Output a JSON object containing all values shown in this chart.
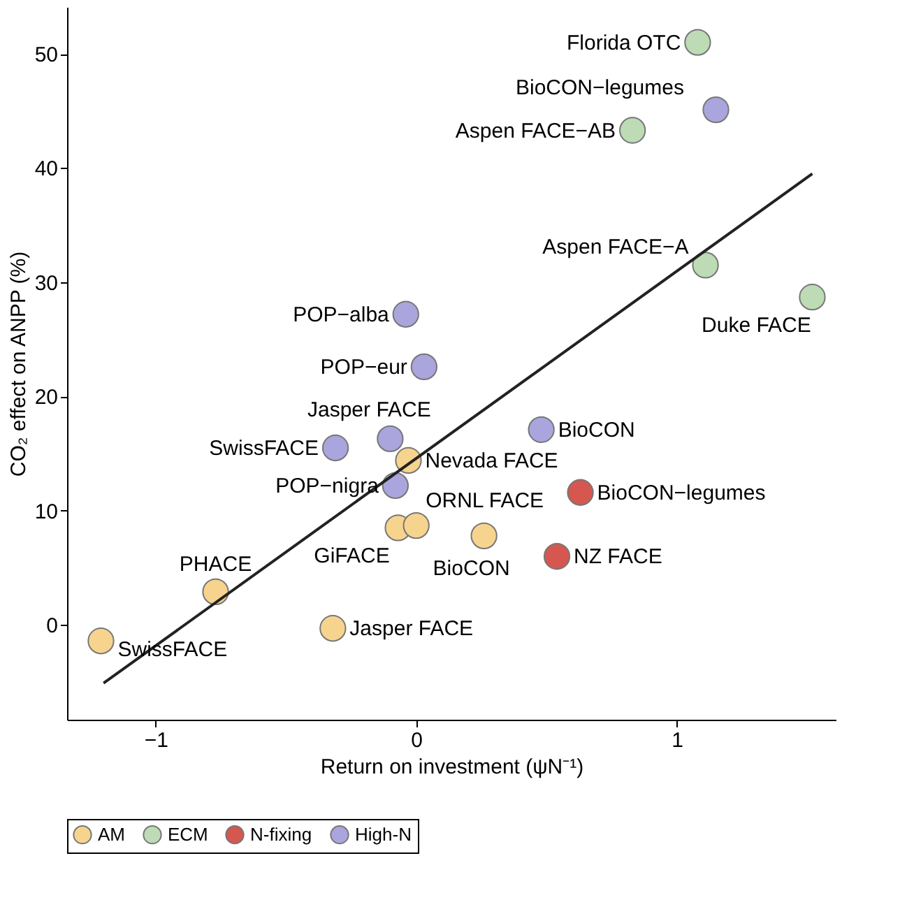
{
  "chart_data": {
    "type": "scatter",
    "xlabel": "Return on investment (ψN⁻¹)",
    "ylabel": "CO₂ effect on ANPP (%)",
    "xlim": [
      -1.34,
      1.61
    ],
    "ylim": [
      -8.3,
      54.1
    ],
    "xticks": [
      -1,
      0,
      1
    ],
    "yticks": [
      0,
      10,
      20,
      30,
      40,
      50
    ],
    "grid": false,
    "legend": "bottom",
    "series": [
      {
        "name": "AM",
        "color": "#f7d48e",
        "marker": "circle",
        "x": [
          -1.21,
          -0.77,
          -0.32,
          -0.07,
          0.0,
          0.26,
          -0.03
        ],
        "values": [
          -1.4,
          2.9,
          -0.3,
          8.5,
          8.7,
          7.8,
          14.4
        ],
        "value_labels": [
          "SwissFACE",
          "PHACE",
          "Jasper FACE",
          "GiFACE",
          "ORNL FACE",
          "BioCON",
          "Nevada FACE"
        ]
      },
      {
        "name": "ECM",
        "color": "#bddbb5",
        "marker": "circle",
        "x": [
          1.08,
          0.83,
          1.11,
          1.52
        ],
        "values": [
          51.0,
          43.3,
          31.5,
          28.7
        ],
        "value_labels": [
          "Florida OTC",
          "Aspen FACE−AB",
          "Aspen FACE−A",
          "Duke FACE"
        ]
      },
      {
        "name": "N-fixing",
        "color": "#d5574f",
        "marker": "circle",
        "x": [
          0.63,
          0.54
        ],
        "values": [
          11.6,
          6.0
        ],
        "value_labels": [
          "BioCON−legumes",
          "NZ FACE"
        ]
      },
      {
        "name": "High-N",
        "color": "#aaa5dc",
        "marker": "circle",
        "x": [
          1.15,
          -0.04,
          0.03,
          -0.1,
          -0.31,
          0.48,
          -0.08
        ],
        "values": [
          45.1,
          27.2,
          22.6,
          16.3,
          15.5,
          17.1,
          12.2
        ],
        "value_labels": [
          "BioCON−legumes",
          "POP−alba",
          "POP−eur",
          "Jasper FACE",
          "SwissFACE",
          "BioCON",
          "POP−nigra"
        ]
      },
      {
        "type": "line",
        "color": "#222222",
        "x": [
          -1.2,
          1.52
        ],
        "values": [
          -5.1,
          39.5
        ]
      }
    ]
  }
}
